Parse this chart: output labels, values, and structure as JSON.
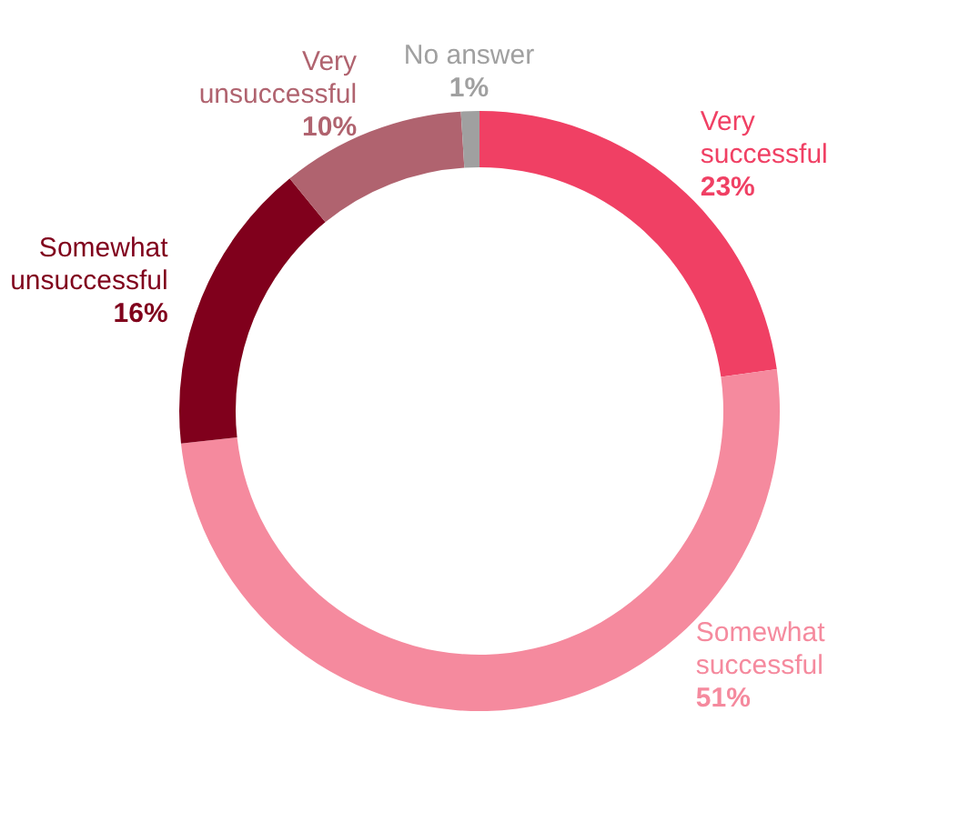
{
  "chart_data": {
    "type": "donut",
    "categories": [
      "Very successful",
      "Somewhat successful",
      "Somewhat unsuccessful",
      "Very unsuccessful",
      "No answer"
    ],
    "values": [
      23,
      51,
      16,
      10,
      1
    ],
    "value_labels": [
      "23%",
      "51%",
      "16%",
      "10%",
      "1%"
    ],
    "colors": [
      "#f04064",
      "#f58a9e",
      "#80001c",
      "#b0636f",
      "#a0a0a0"
    ]
  }
}
